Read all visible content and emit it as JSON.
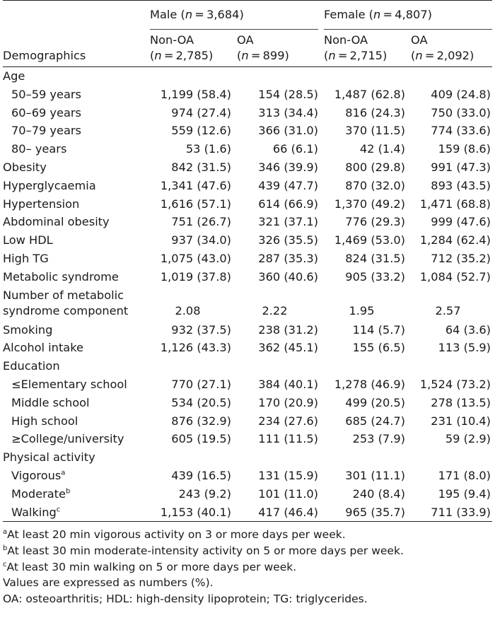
{
  "header": {
    "male_group": "Male (n = 3,684)",
    "female_group": "Female (n = 4,807)",
    "demographics": "Demographics",
    "male_non_oa": "Non-OA",
    "male_non_oa_n": "(n = 2,785)",
    "male_oa": "OA",
    "male_oa_n": "(n = 899)",
    "female_non_oa": "Non-OA",
    "female_non_oa_n": "(n = 2,715)",
    "female_oa": "OA",
    "female_oa_n": "(n = 2,092)"
  },
  "rows": [
    {
      "label": "Age",
      "indent": false,
      "values": [
        "",
        "",
        "",
        ""
      ]
    },
    {
      "label": "50–59 years",
      "indent": true,
      "values": [
        "1,199 (58.4)",
        "154 (28.5)",
        "1,487 (62.8)",
        "409 (24.8)"
      ]
    },
    {
      "label": "60–69 years",
      "indent": true,
      "values": [
        "974 (27.4)",
        "313 (34.4)",
        "816 (24.3)",
        "750 (33.0)"
      ]
    },
    {
      "label": "70–79 years",
      "indent": true,
      "values": [
        "559 (12.6)",
        "366 (31.0)",
        "370 (11.5)",
        "774 (33.6)"
      ]
    },
    {
      "label": "80– years",
      "indent": true,
      "values": [
        "53 (1.6)",
        "66 (6.1)",
        "42 (1.4)",
        "159 (8.6)"
      ]
    },
    {
      "label": "Obesity",
      "indent": false,
      "values": [
        "842 (31.5)",
        "346 (39.9)",
        "800 (29.8)",
        "991 (47.3)"
      ]
    },
    {
      "label": "Hyperglycaemia",
      "indent": false,
      "values": [
        "1,341 (47.6)",
        "439 (47.7)",
        "870 (32.0)",
        "893 (43.5)"
      ]
    },
    {
      "label": "Hypertension",
      "indent": false,
      "values": [
        "1,616 (57.1)",
        "614 (66.9)",
        "1,370 (49.2)",
        "1,471 (68.8)"
      ]
    },
    {
      "label": "Abdominal obesity",
      "indent": false,
      "values": [
        "751 (26.7)",
        "321 (37.1)",
        "776 (29.3)",
        "999 (47.6)"
      ]
    },
    {
      "label": "Low HDL",
      "indent": false,
      "values": [
        "937 (34.0)",
        "326 (35.5)",
        "1,469 (53.0)",
        "1,284 (62.4)"
      ]
    },
    {
      "label": "High TG",
      "indent": false,
      "values": [
        "1,075 (43.0)",
        "287 (35.3)",
        "824 (31.5)",
        "712 (35.2)"
      ]
    },
    {
      "label": "Metabolic syndrome",
      "indent": false,
      "values": [
        "1,019 (37.8)",
        "360 (40.6)",
        "905 (33.2)",
        "1,084 (52.7)"
      ]
    }
  ],
  "metabolic_component": {
    "label_line1": "Number of metabolic",
    "label_line2": "syndrome component",
    "values": [
      "2.08",
      "2.22",
      "1.95",
      "2.57"
    ]
  },
  "rows2": [
    {
      "label": "Smoking",
      "indent": false,
      "values": [
        "932 (37.5)",
        "238 (31.2)",
        "114 (5.7)",
        "64 (3.6)"
      ]
    },
    {
      "label": "Alcohol intake",
      "indent": false,
      "values": [
        "1,126 (43.3)",
        "362 (45.1)",
        "155 (6.5)",
        "113 (5.9)"
      ]
    },
    {
      "label": "Education",
      "indent": false,
      "values": [
        "",
        "",
        "",
        ""
      ]
    },
    {
      "label": "≤Elementary school",
      "indent": true,
      "values": [
        "770 (27.1)",
        "384 (40.1)",
        "1,278 (46.9)",
        "1,524 (73.2)"
      ]
    },
    {
      "label": "Middle school",
      "indent": true,
      "values": [
        "534 (20.5)",
        "170 (20.9)",
        "499 (20.5)",
        "278 (13.5)"
      ]
    },
    {
      "label": "High school",
      "indent": true,
      "values": [
        "876 (32.9)",
        "234 (27.6)",
        "685 (24.7)",
        "231 (10.4)"
      ]
    },
    {
      "label": "≥College/university",
      "indent": true,
      "values": [
        "605 (19.5)",
        "111 (11.5)",
        "253 (7.9)",
        "59 (2.9)"
      ]
    },
    {
      "label": "Physical activity",
      "indent": false,
      "values": [
        "",
        "",
        "",
        ""
      ]
    }
  ],
  "activity": [
    {
      "label": "Vigorous",
      "sup": "a",
      "values": [
        "439 (16.5)",
        "131 (15.9)",
        "301 (11.1)",
        "171 (8.0)"
      ]
    },
    {
      "label": "Moderate",
      "sup": "b",
      "values": [
        "243 (9.2)",
        "101 (11.0)",
        "240 (8.4)",
        "195 (9.4)"
      ]
    },
    {
      "label": "Walking",
      "sup": "c",
      "values": [
        "1,153 (40.1)",
        "417 (46.4)",
        "965 (35.7)",
        "711 (33.9)"
      ]
    }
  ],
  "footnotes": {
    "a_mark": "a",
    "a_text": "At least 20 min vigorous activity on 3 or more days per week.",
    "b_mark": "b",
    "b_text": "At least 30 min moderate-intensity activity on 5 or more days per week.",
    "c_mark": "c",
    "c_text": "At least 30 min walking on 5 or more days per week.",
    "values_note": "Values are expressed as numbers (%).",
    "abbrev": "OA: osteoarthritis; HDL: high-density lipoprotein; TG: triglycerides."
  }
}
